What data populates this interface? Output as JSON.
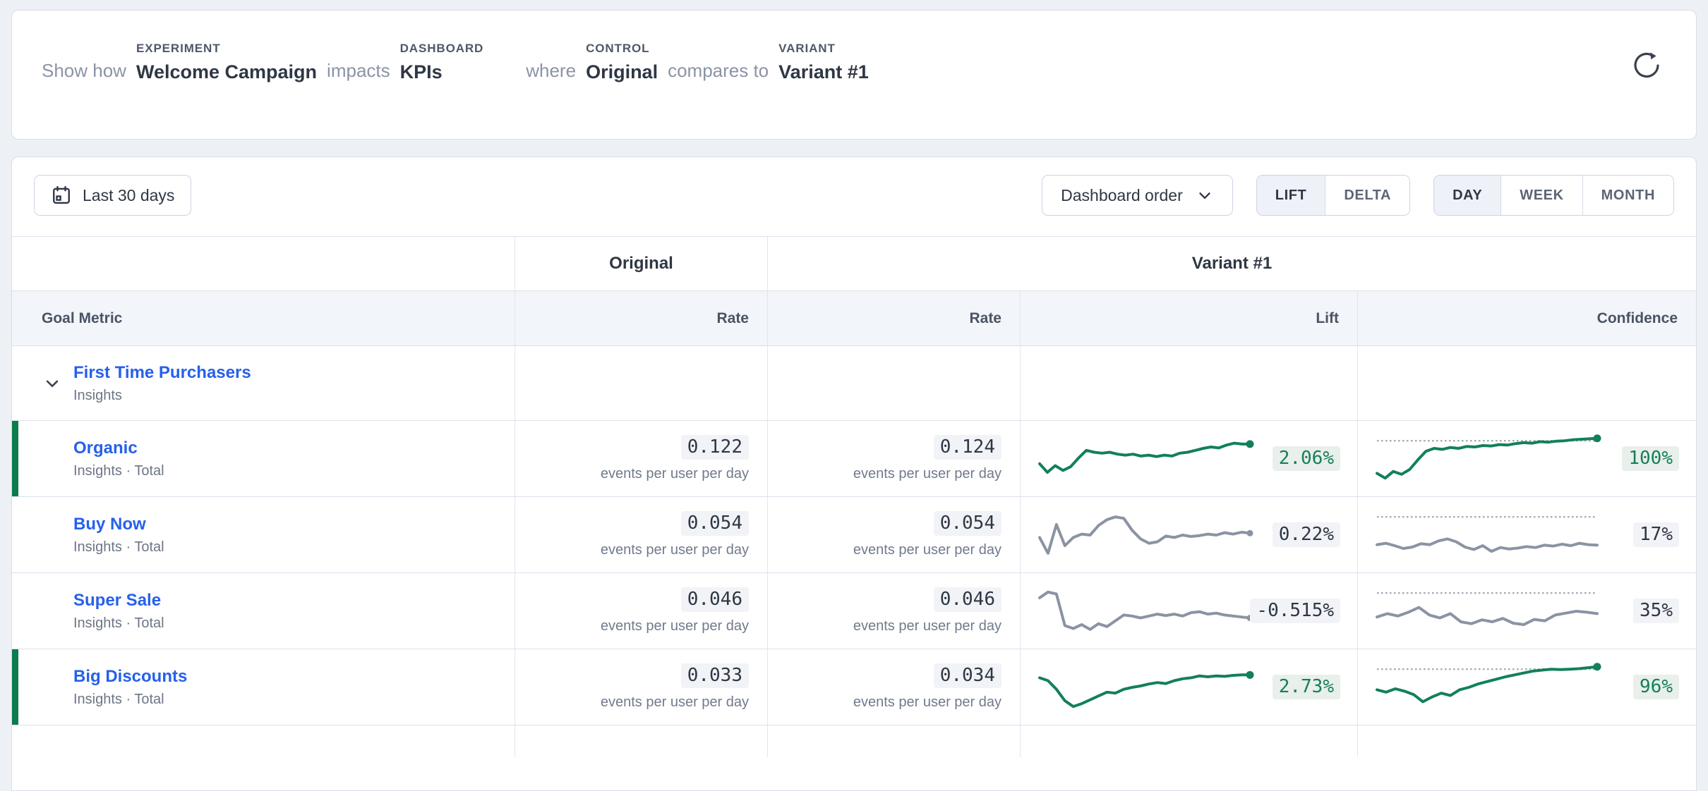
{
  "experiment_bar": {
    "prefix": "Show how",
    "connector_impacts": "impacts",
    "connector_where": "where",
    "connector_compares": "compares to",
    "terms": [
      {
        "label": "EXPERIMENT",
        "value": "Welcome Campaign"
      },
      {
        "label": "DASHBOARD",
        "value": "KPIs"
      },
      {
        "label": "CONTROL",
        "value": "Original"
      },
      {
        "label": "VARIANT",
        "value": "Variant #1"
      }
    ]
  },
  "toolbar": {
    "date_range": "Last 30 days",
    "dashboard_order": "Dashboard order",
    "mode_toggle": {
      "options": [
        "LIFT",
        "DELTA"
      ],
      "selected": "LIFT"
    },
    "granularity_toggle": {
      "options": [
        "DAY",
        "WEEK",
        "MONTH"
      ],
      "selected": "DAY"
    }
  },
  "table": {
    "group_headers": {
      "control": "Original",
      "variant": "Variant #1"
    },
    "columns": {
      "goal_metric": "Goal Metric",
      "rate_control": "Rate",
      "rate_variant": "Rate",
      "lift": "Lift",
      "confidence": "Confidence"
    },
    "unit": "events per user per day",
    "group_row": {
      "name": "First Time Purchasers",
      "subtitle": "Insights"
    },
    "confidence_threshold": 88,
    "metrics": [
      {
        "name": "Organic",
        "subtitle": "Insights · Total",
        "control_rate": "0.122",
        "variant_rate": "0.124",
        "lift": "2.06%",
        "confidence": "100%",
        "significant": true,
        "lift_spark": [
          40,
          22,
          36,
          26,
          34,
          52,
          68,
          64,
          62,
          64,
          60,
          58,
          60,
          56,
          58,
          55,
          58,
          56,
          62,
          64,
          68,
          72,
          75,
          73,
          79,
          83,
          81,
          81
        ],
        "conf_spark": [
          20,
          10,
          24,
          18,
          28,
          48,
          66,
          72,
          70,
          74,
          72,
          76,
          75,
          78,
          77,
          80,
          79,
          82,
          84,
          83,
          86,
          85,
          87,
          88,
          90,
          91,
          92,
          93
        ]
      },
      {
        "name": "Buy Now",
        "subtitle": "Insights · Total",
        "control_rate": "0.054",
        "variant_rate": "0.054",
        "lift": "0.22%",
        "confidence": "17%",
        "significant": false,
        "lift_spark": [
          45,
          12,
          72,
          28,
          45,
          52,
          50,
          70,
          82,
          88,
          85,
          60,
          42,
          33,
          36,
          48,
          45,
          50,
          47,
          49,
          52,
          50,
          55,
          52,
          56,
          54
        ],
        "conf_spark": [
          30,
          33,
          28,
          22,
          25,
          32,
          30,
          38,
          42,
          36,
          25,
          20,
          28,
          16,
          24,
          21,
          23,
          26,
          24,
          29,
          27,
          31,
          28,
          33,
          30,
          29
        ]
      },
      {
        "name": "Super Sale",
        "subtitle": "Insights · Total",
        "control_rate": "0.046",
        "variant_rate": "0.046",
        "lift": "-0.515%",
        "confidence": "35%",
        "significant": false,
        "lift_spark": [
          78,
          90,
          86,
          20,
          14,
          22,
          12,
          24,
          18,
          30,
          42,
          40,
          36,
          40,
          44,
          41,
          44,
          40,
          47,
          49,
          44,
          46,
          42,
          40,
          38,
          36
        ],
        "conf_spark": [
          38,
          45,
          40,
          48,
          58,
          42,
          36,
          45,
          28,
          24,
          32,
          28,
          35,
          25,
          22,
          33,
          30,
          42,
          46,
          50,
          48,
          45
        ]
      },
      {
        "name": "Big Discounts",
        "subtitle": "Insights · Total",
        "control_rate": "0.033",
        "variant_rate": "0.034",
        "lift": "2.73%",
        "confidence": "96%",
        "significant": true,
        "lift_spark": [
          70,
          64,
          46,
          22,
          10,
          16,
          24,
          32,
          40,
          38,
          46,
          50,
          53,
          57,
          60,
          58,
          64,
          68,
          70,
          74,
          72,
          74,
          73,
          75,
          76,
          76
        ],
        "conf_spark": [
          45,
          40,
          47,
          42,
          35,
          20,
          30,
          38,
          33,
          45,
          50,
          57,
          62,
          67,
          72,
          76,
          80,
          84,
          86,
          88,
          87,
          88,
          89,
          91,
          93
        ]
      }
    ]
  },
  "colors": {
    "green_line": "#12805a",
    "gray_line": "#8b93a3",
    "green_accent_bar": "#0c7c4d",
    "green_chip_bg": "#e9efeb",
    "green_chip_text": "#15805a",
    "neutral_chip_bg": "#f1f3f7",
    "neutral_chip_text": "#2f3744",
    "threshold_line": "#a3aab7",
    "link_blue": "#2660ea"
  },
  "icons": {
    "refresh": "refresh-icon",
    "calendar": "calendar-icon",
    "chevron_down": "chevron-down-icon"
  }
}
